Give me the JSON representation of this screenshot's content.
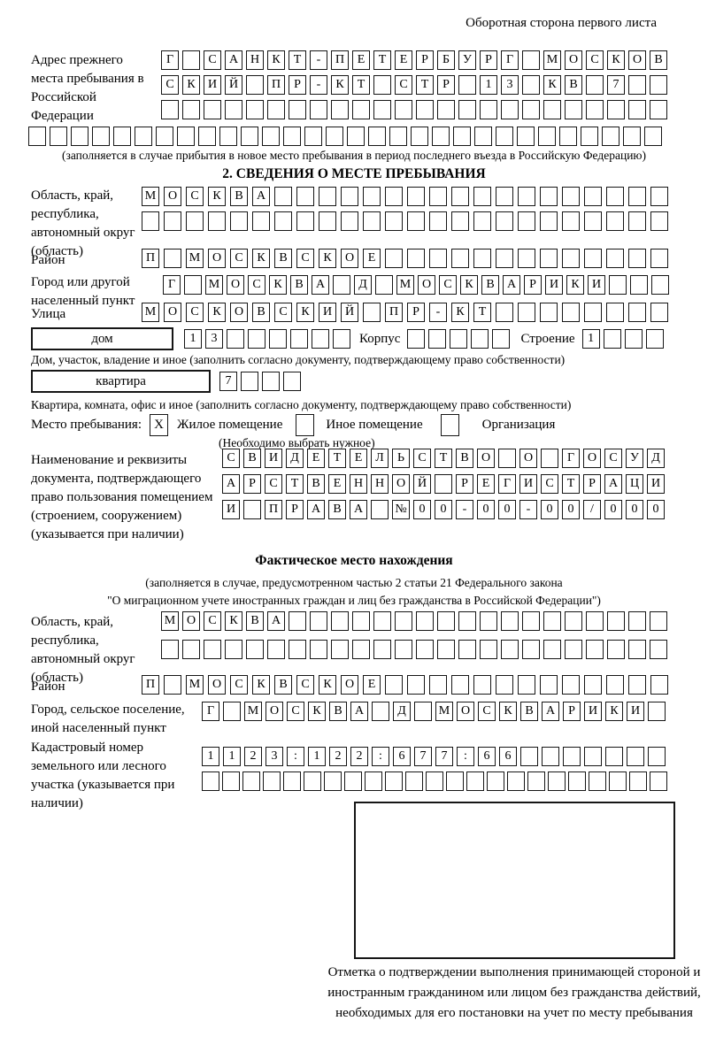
{
  "header_note": "Оборотная сторона первого листа",
  "prev_address": {
    "label": "Адрес прежнего места пребывания в Российской Федерации",
    "row1": {
      "len": 24,
      "text": "Г САНКТ-ПЕТЕРБУРГ МОСКОВ"
    },
    "row2": {
      "len": 24,
      "text": "СКИЙ ПР-КТ СТР 13 КВ 7"
    },
    "row3": {
      "len": 24,
      "text": ""
    },
    "row4": {
      "len": 30,
      "text": ""
    },
    "note": "(заполняется в случае прибытия в новое место пребывания в период последнего въезда в Российскую Федерацию)"
  },
  "section2": {
    "title": "2. СВЕДЕНИЯ О МЕСТЕ ПРЕБЫВАНИЯ",
    "region_label": "Область, край, республика, автономный округ (область)",
    "region_row1": {
      "len": 24,
      "text": "МОСКВА"
    },
    "region_row2": {
      "len": 24,
      "text": ""
    },
    "district_label": "Район",
    "district_row": {
      "len": 24,
      "text": "П МОСКВСКОЕ"
    },
    "city_label": "Город или другой населенный пункт",
    "city_row": {
      "len": 24,
      "text": "Г МОСКВА Д МОСКВАРИКИ"
    },
    "street_label": "Улица",
    "street_row": {
      "len": 24,
      "text": "МОСКОВСКИЙ ПР-КТ"
    },
    "house_label": "дом",
    "house_row": {
      "len": 8,
      "text": "13"
    },
    "korpus_label": "Корпус",
    "korpus_row": {
      "len": 5,
      "text": ""
    },
    "stroenie_label": "Строение",
    "stroenie_row": {
      "len": 4,
      "text": "1"
    },
    "house_note": "Дом, участок, владение и иное (заполнить согласно документу, подтверждающему право собственности)",
    "apartment_label": "квартира",
    "apartment_row": {
      "len": 4,
      "text": "7"
    },
    "apartment_note": "Квартира, комната, офис и иное (заполнить согласно документу, подтверждающему право собственности)",
    "stay_label": "Место пребывания:",
    "stay_options": [
      {
        "label": "Жилое помещение",
        "mark": "X"
      },
      {
        "label": "Иное помещение",
        "mark": ""
      },
      {
        "label": "Организация",
        "mark": ""
      }
    ],
    "stay_note": "(Необходимо выбрать нужное)",
    "doc_label": "Наименование и реквизиты документа, подтверждающего право пользования помещением (строением, сооружением) (указывается при наличии)",
    "doc_row1": {
      "len": 21,
      "text": "СВИДЕТЕЛЬСТВО О ГОСУД"
    },
    "doc_row2": {
      "len": 21,
      "text": "АРСТВЕННОЙ РЕГИСТРАЦИ"
    },
    "doc_row3": {
      "len": 21,
      "text": "И ПРАВА №00-00-00/000"
    }
  },
  "actual": {
    "title": "Фактическое место нахождения",
    "note1": "(заполняется в случае, предусмотренном частью 2 статьи 21 Федерального закона",
    "note2": "\"О миграционном учете иностранных граждан и лиц без гражданства в Российской Федерации\")",
    "region_label": "Область, край, республика, автономный округ (область)",
    "region_row1": {
      "len": 24,
      "text": "МОСКВА"
    },
    "region_row2": {
      "len": 24,
      "text": ""
    },
    "district_label": "Район",
    "district_row": {
      "len": 24,
      "text": "П МОСКВСКОЕ"
    },
    "city_label": "Город, сельское поселение, иной населенный пункт",
    "city_row": {
      "len": 22,
      "text": "Г МОСКВА Д МОСКВАРИКИ"
    },
    "cadastral_label": "Кадастровый номер земельного или лесного участка (указывается при наличии)",
    "cadastral_row1": {
      "len": 22,
      "text": "1123:122:677:66"
    },
    "cadastral_row2": {
      "len": 23,
      "text": ""
    }
  },
  "stamp_caption": "Отметка о подтверждении выполнения принимающей стороной и иностранным гражданином или лицом без гражданства действий, необходимых для его постановки на учет по месту пребывания"
}
